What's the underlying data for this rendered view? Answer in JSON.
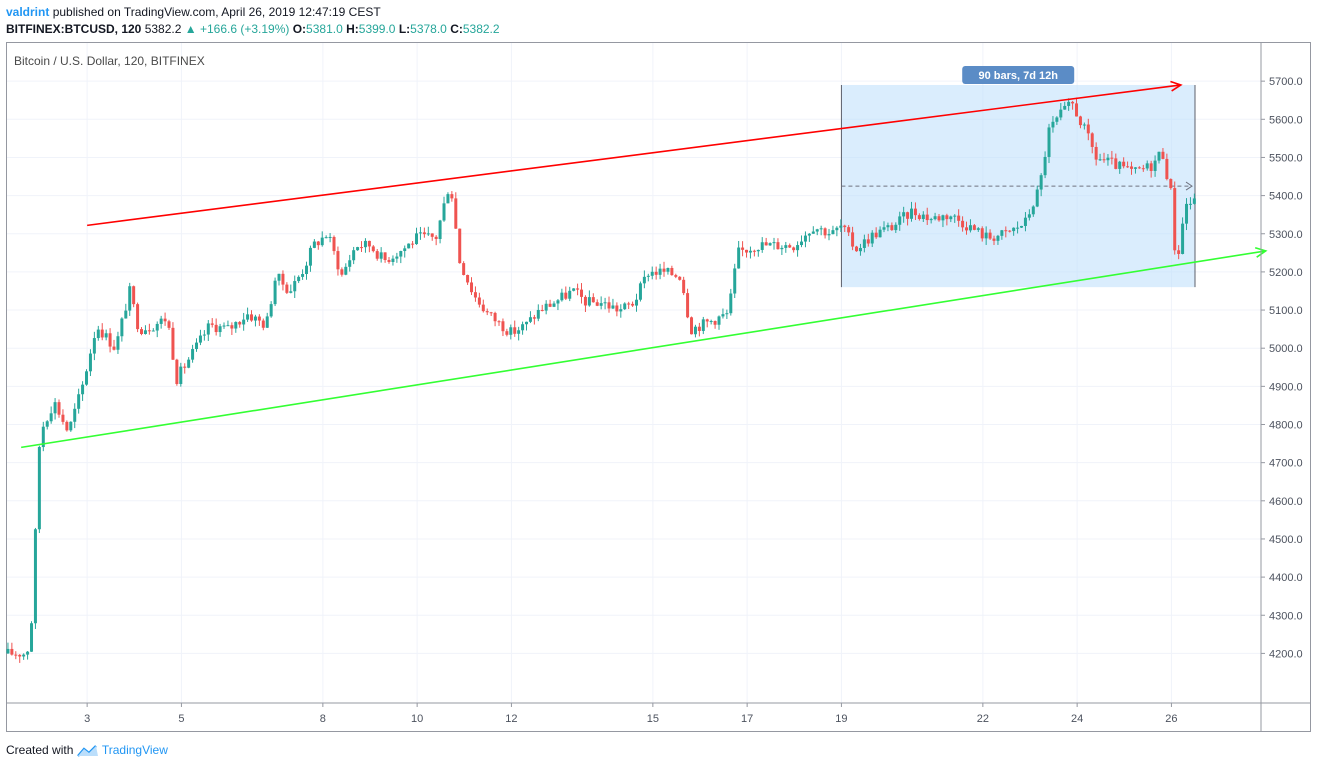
{
  "header": {
    "user": "valdrint",
    "published": "published on TradingView.com, April 26, 2019 12:47:19 CEST",
    "symbol": "BITFINEX:BTCUSD, 120",
    "last": "5382.2",
    "change": "▲ +166.6 (+3.19%)",
    "o_label": "O:",
    "o_val": "5381.0",
    "h_label": "H:",
    "h_val": "5399.0",
    "l_label": "L:",
    "l_val": "5378.0",
    "c_label": "C:",
    "c_val": "5382.2"
  },
  "legend_title": "Bitcoin / U.S. Dollar, 120, BITFINEX",
  "footer": {
    "created_with": "Created with",
    "brand": "TradingView"
  },
  "colors": {
    "up": "#26a69a",
    "down": "#ef5350",
    "upper_line": "#ff0000",
    "lower_line": "#33ff33",
    "range_fill": "#bbdefb",
    "range_label_bg": "#5b8cc6"
  },
  "chart_data": {
    "type": "candlestick",
    "x_tick_labels": [
      "3",
      "5",
      "8",
      "10",
      "12",
      "15",
      "17",
      "19",
      "22",
      "24",
      "26"
    ],
    "y_ticks": [
      4200,
      4300,
      4400,
      4500,
      4600,
      4700,
      4800,
      4900,
      5000,
      5100,
      5200,
      5300,
      5400,
      5500,
      5600,
      5700
    ],
    "y_tick_labels": [
      "4200.0",
      "4300.0",
      "4400.0",
      "4500.0",
      "4600.0",
      "4700.0",
      "4800.0",
      "4900.0",
      "5000.0",
      "5100.0",
      "5200.0",
      "5300.0",
      "5400.0",
      "5500.0",
      "5600.0",
      "5700.0"
    ],
    "ylim": [
      4070,
      5800
    ],
    "x_range_days": [
      1.3,
      27.9
    ],
    "current_price": 5382.2,
    "range_tool": {
      "start_day": 19,
      "end_day": 26.5,
      "price_low": 5160,
      "price_high": 5690,
      "label": "90 bars, 7d 12h",
      "mid_price": 5425
    },
    "trendlines": [
      {
        "name": "upper",
        "start_day": 3,
        "start_price": 5322,
        "end_day": 26.2,
        "end_price": 5690,
        "color": "#ff0000"
      },
      {
        "name": "lower",
        "start_day": 1.6,
        "start_price": 4740,
        "end_day": 28.0,
        "end_price": 5255,
        "color": "#33ff33"
      }
    ],
    "price_path": [
      [
        1.3,
        4200
      ],
      [
        1.7,
        4200
      ],
      [
        1.8,
        4230
      ],
      [
        2.0,
        4780
      ],
      [
        2.3,
        4860
      ],
      [
        2.6,
        4780
      ],
      [
        2.9,
        4900
      ],
      [
        3.2,
        5060
      ],
      [
        3.6,
        5000
      ],
      [
        3.9,
        5150
      ],
      [
        4.1,
        5050
      ],
      [
        4.4,
        5060
      ],
      [
        4.7,
        5080
      ],
      [
        4.9,
        4920
      ],
      [
        5.3,
        5000
      ],
      [
        5.6,
        5060
      ],
      [
        6.0,
        5050
      ],
      [
        6.4,
        5090
      ],
      [
        6.8,
        5060
      ],
      [
        7.0,
        5190
      ],
      [
        7.3,
        5150
      ],
      [
        7.6,
        5210
      ],
      [
        7.8,
        5270
      ],
      [
        8.1,
        5300
      ],
      [
        8.4,
        5190
      ],
      [
        8.7,
        5270
      ],
      [
        9.0,
        5270
      ],
      [
        9.3,
        5230
      ],
      [
        9.7,
        5260
      ],
      [
        10.0,
        5290
      ],
      [
        10.4,
        5290
      ],
      [
        10.7,
        5440
      ],
      [
        10.9,
        5230
      ],
      [
        11.2,
        5140
      ],
      [
        11.5,
        5090
      ],
      [
        11.8,
        5060
      ],
      [
        12.0,
        5040
      ],
      [
        12.3,
        5060
      ],
      [
        12.6,
        5100
      ],
      [
        12.9,
        5120
      ],
      [
        13.3,
        5150
      ],
      [
        13.6,
        5120
      ],
      [
        13.9,
        5120
      ],
      [
        14.3,
        5100
      ],
      [
        14.6,
        5120
      ],
      [
        14.9,
        5200
      ],
      [
        15.2,
        5200
      ],
      [
        15.6,
        5190
      ],
      [
        15.8,
        5050
      ],
      [
        16.2,
        5070
      ],
      [
        16.6,
        5090
      ],
      [
        16.8,
        5250
      ],
      [
        17.2,
        5270
      ],
      [
        17.6,
        5270
      ],
      [
        18.0,
        5270
      ],
      [
        18.4,
        5320
      ],
      [
        18.8,
        5300
      ],
      [
        19.0,
        5320
      ],
      [
        19.3,
        5260
      ],
      [
        19.7,
        5300
      ],
      [
        20.1,
        5320
      ],
      [
        20.5,
        5360
      ],
      [
        20.9,
        5340
      ],
      [
        21.3,
        5350
      ],
      [
        21.7,
        5320
      ],
      [
        22.1,
        5290
      ],
      [
        22.5,
        5300
      ],
      [
        22.9,
        5330
      ],
      [
        23.2,
        5420
      ],
      [
        23.4,
        5570
      ],
      [
        23.7,
        5620
      ],
      [
        23.9,
        5640
      ],
      [
        24.2,
        5560
      ],
      [
        24.4,
        5500
      ],
      [
        24.8,
        5480
      ],
      [
        25.2,
        5460
      ],
      [
        25.6,
        5480
      ],
      [
        25.8,
        5520
      ],
      [
        26.0,
        5400
      ],
      [
        26.1,
        5210
      ],
      [
        26.3,
        5380
      ],
      [
        26.5,
        5382
      ]
    ]
  }
}
